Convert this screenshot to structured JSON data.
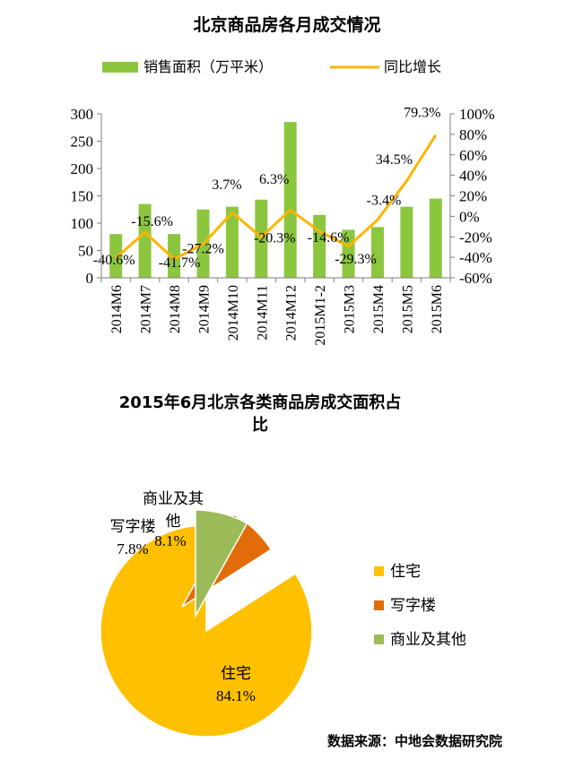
{
  "colors": {
    "bar": "#8CC63F",
    "line": "#FFB400",
    "axis": "#7f7f7f",
    "residential": "#FFC000",
    "office": "#E36C0A",
    "commercial": "#9BBB59"
  },
  "chart_data": [
    {
      "type": "bar",
      "title": "北京商品房各月成交情况",
      "categories": [
        "2014M6",
        "2014M7",
        "2014M8",
        "2014M9",
        "2014M10",
        "2014M11",
        "2014M12",
        "2015M1-2",
        "2015M3",
        "2015M4",
        "2015M5",
        "2015M6"
      ],
      "series": [
        {
          "name": "销售面积（万平米）",
          "type": "bar",
          "axis": "left",
          "values": [
            80,
            135,
            80,
            125,
            130,
            143,
            285,
            115,
            88,
            93,
            130,
            145
          ]
        },
        {
          "name": "同比增长",
          "type": "line",
          "axis": "right",
          "values": [
            -40.6,
            -15.6,
            -41.7,
            -27.2,
            3.7,
            -20.3,
            6.3,
            -14.6,
            -29.3,
            -3.4,
            34.5,
            79.3
          ],
          "labels": [
            "-40.6%",
            "-15.6%",
            "-41.7%",
            "-27.2%",
            "3.7%",
            "-20.3%",
            "6.3%",
            "-14.6%",
            "-29.3%",
            "-3.4%",
            "34.5%",
            "79.3%"
          ]
        }
      ],
      "left_axis": {
        "ylim": [
          0,
          300
        ],
        "ticks": [
          "0",
          "50",
          "100",
          "150",
          "200",
          "250",
          "300"
        ]
      },
      "right_axis": {
        "ylim": [
          -60,
          100
        ],
        "ticks": [
          "-60%",
          "-40%",
          "-20%",
          "0%",
          "20%",
          "40%",
          "60%",
          "80%",
          "100%"
        ]
      },
      "legend": "top"
    },
    {
      "type": "pie",
      "title": "2015年6月北京各类商品房成交面积占比",
      "title_lines": [
        "2015年6月北京各类商品房成交面积占",
        "比"
      ],
      "slices": [
        {
          "name": "住宅",
          "value": 84.1,
          "label": "84.1%"
        },
        {
          "name": "写字楼",
          "value": 7.8,
          "label": "7.8%"
        },
        {
          "name": "商业及其他",
          "value": 8.1,
          "label": "8.1%"
        }
      ],
      "slice_name_lines": {
        "商业及其他": [
          "商业及其",
          "他"
        ]
      },
      "legend": "right"
    }
  ],
  "source_text": "数据来源：中地会数据研究院"
}
